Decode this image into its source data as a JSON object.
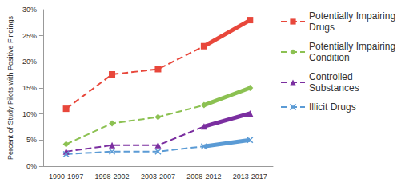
{
  "chart_data": {
    "type": "line",
    "y_label": "Percent of Study Pilots with Positive Findings",
    "categories": [
      "1990-1997",
      "1998-2002",
      "2003-2007",
      "2008-2012",
      "2013-2017"
    ],
    "series": [
      {
        "name": "Potentially Impairing Drugs",
        "color": "#e8473b",
        "marker": "square",
        "line_style": "dashed_to_solid",
        "values": [
          11.0,
          17.6,
          18.6,
          23.0,
          28.0
        ]
      },
      {
        "name": "Potentially Impairing Condition",
        "color": "#8cc152",
        "marker": "diamond",
        "line_style": "dashed_to_solid",
        "values": [
          4.2,
          8.2,
          9.4,
          11.7,
          15.0
        ]
      },
      {
        "name": "Controlled Substances",
        "color": "#7b2fa0",
        "marker": "triangle",
        "line_style": "dashed_to_solid",
        "values": [
          2.8,
          4.0,
          4.0,
          7.6,
          10.1
        ]
      },
      {
        "name": "Illicit Drugs",
        "color": "#5b9bd5",
        "marker": "x",
        "line_style": "dashed_to_solid",
        "values": [
          2.3,
          2.8,
          2.8,
          3.8,
          5.0
        ]
      }
    ],
    "ylim": [
      0,
      30
    ],
    "yticks": [
      {
        "value": 0,
        "label": "0%"
      },
      {
        "value": 5,
        "label": "5%"
      },
      {
        "value": 10,
        "label": "10%"
      },
      {
        "value": 15,
        "label": "15%"
      },
      {
        "value": 20,
        "label": "20%"
      },
      {
        "value": 25,
        "label": "25%"
      },
      {
        "value": 30,
        "label": "30%"
      }
    ],
    "grid": false,
    "legend": "right"
  }
}
